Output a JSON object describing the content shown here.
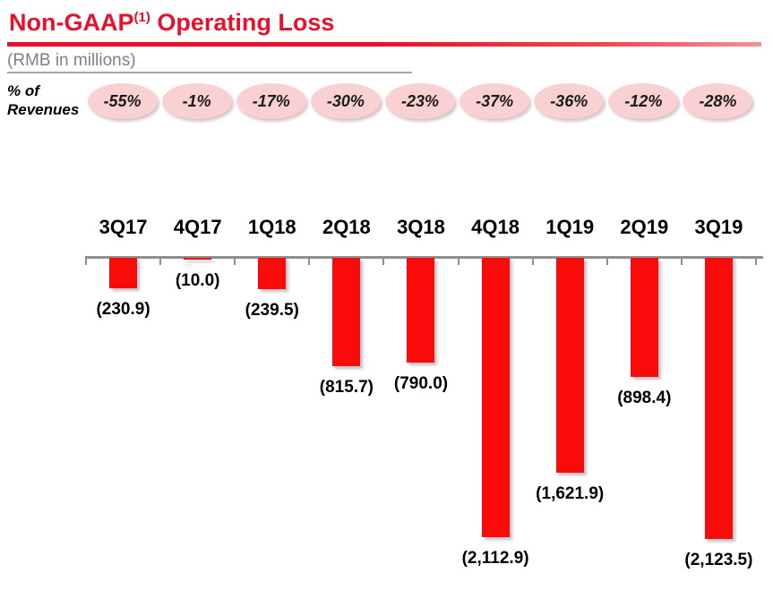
{
  "header": {
    "title_main": "Non-GAAP",
    "title_superscript": "(1)",
    "title_rest": " Operating Loss",
    "subtitle": "(RMB in millions)"
  },
  "pct_caption": {
    "line1": "% of",
    "line2": "Revenues"
  },
  "chart_data": {
    "type": "bar",
    "title": "Non-GAAP Operating Loss",
    "unit": "RMB in millions",
    "orientation": "vertical-negative",
    "categories": [
      "3Q17",
      "4Q17",
      "1Q18",
      "2Q18",
      "3Q18",
      "4Q18",
      "1Q19",
      "2Q19",
      "3Q19"
    ],
    "series": [
      {
        "name": "Non-GAAP operating loss (RMB millions)",
        "values": [
          -230.9,
          -10.0,
          -239.5,
          -815.7,
          -790.0,
          -2112.9,
          -1621.9,
          -898.4,
          -2123.5
        ]
      },
      {
        "name": "% of revenues",
        "values": [
          "-55%",
          "-1%",
          "-17%",
          "-30%",
          "-23%",
          "-37%",
          "-36%",
          "-12%",
          "-28%"
        ]
      }
    ],
    "value_labels": [
      "(230.9)",
      "(10.0)",
      "(239.5)",
      "(815.7)",
      "(790.0)",
      "(2,112.9)",
      "(1,621.9)",
      "(898.4)",
      "(2,123.5)"
    ],
    "pct_labels": [
      "-55%",
      "-1%",
      "-17%",
      "-30%",
      "-23%",
      "-37%",
      "-36%",
      "-12%",
      "-28%"
    ],
    "ylim": [
      -2200,
      0
    ],
    "grid": false,
    "legend": "none",
    "colors": {
      "bar_red": "#fb0a0a",
      "title_red": "#e8112d",
      "ellipse_pink": "#f9d1d3",
      "axis_gray": "#8f8f8f",
      "subtitle_gray": "#7f7f7f",
      "label_black": "#000000"
    }
  }
}
